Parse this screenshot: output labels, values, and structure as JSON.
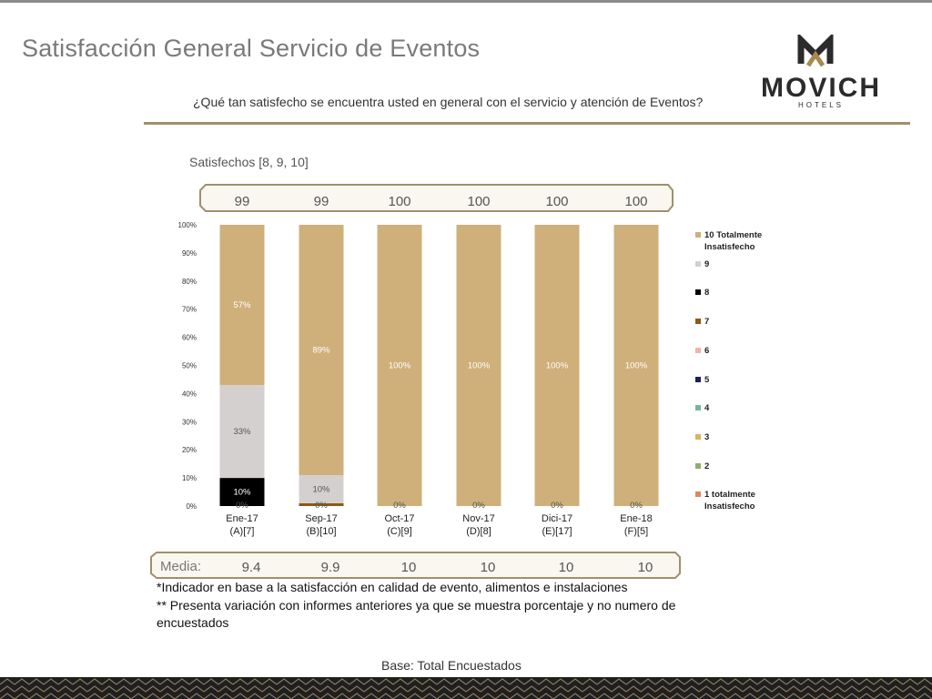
{
  "header": {
    "title": "Satisfacción General Servicio de Eventos",
    "question": "¿Qué tan satisfecho se encuentra usted en general con el servicio y atención de Eventos?",
    "logo_text": "MOVICH",
    "logo_subtext": "HOTELS"
  },
  "satisfied_label": "Satisfechos [8, 9, 10]",
  "footer": {
    "note1": "*Indicador en base a la satisfacción en calidad de evento, alimentos e instalaciones",
    "note2": "** Presenta variación con informes anteriores ya que se muestra porcentaje y no numero de encuestados",
    "base": "Base: Total Encuestados"
  },
  "colors": {
    "score10": "#cfb07a",
    "score9": "#d4d0cf",
    "score8": "#000000",
    "score7": "#8b5a14",
    "score6": "#f2b3a7",
    "score5": "#1a1f5c",
    "score4": "#7ab3a6",
    "score3": "#e0b060",
    "score2": "#8fae6e",
    "score1": "#e0875a",
    "band_border": "#a08f6a",
    "band_fill": "#faf7f1"
  },
  "chart_data": {
    "type": "bar",
    "stacked": true,
    "categories": [
      "Ene-17",
      "Sep-17",
      "Oct-17",
      "Nov-17",
      "Dici-17",
      "Ene-18"
    ],
    "category_sublabels": [
      "(A)[7]",
      "(B)[10]",
      "(C)[9]",
      "(D)[8]",
      "(E)[17]",
      "(F)[5]"
    ],
    "ylim": [
      0,
      100
    ],
    "yticks": [
      "0%",
      "10%",
      "20%",
      "30%",
      "40%",
      "50%",
      "60%",
      "70%",
      "80%",
      "90%",
      "100%"
    ],
    "legend_position": "right",
    "series": [
      {
        "name": "1 totalmente Insatisfecho",
        "values": [
          0,
          0,
          0,
          0,
          0,
          0
        ]
      },
      {
        "name": "2",
        "values": [
          0,
          0,
          0,
          0,
          0,
          0
        ]
      },
      {
        "name": "3",
        "values": [
          0,
          0,
          0,
          0,
          0,
          0
        ]
      },
      {
        "name": "4",
        "values": [
          0,
          0,
          0,
          0,
          0,
          0
        ]
      },
      {
        "name": "5",
        "values": [
          0,
          0,
          0,
          0,
          0,
          0
        ]
      },
      {
        "name": "6",
        "values": [
          0,
          0,
          0,
          0,
          0,
          0
        ]
      },
      {
        "name": "7",
        "values": [
          0,
          1,
          0,
          0,
          0,
          0
        ]
      },
      {
        "name": "8",
        "values": [
          10,
          0,
          0,
          0,
          0,
          0
        ]
      },
      {
        "name": "9",
        "values": [
          33,
          10,
          0,
          0,
          0,
          0
        ]
      },
      {
        "name": "10 Totalmente Insatisfecho",
        "values": [
          57,
          89,
          100,
          100,
          100,
          100
        ]
      }
    ],
    "bar_labels": [
      {
        "category": 0,
        "series": "10 Totalmente Insatisfecho",
        "text": "57%"
      },
      {
        "category": 0,
        "series": "9",
        "text": "33%"
      },
      {
        "category": 0,
        "series": "8",
        "text": "10%"
      },
      {
        "category": 0,
        "series": "1 totalmente Insatisfecho",
        "text": "0%"
      },
      {
        "category": 1,
        "series": "10 Totalmente Insatisfecho",
        "text": "89%"
      },
      {
        "category": 1,
        "series": "9",
        "text": "10%"
      },
      {
        "category": 1,
        "series": "1 totalmente Insatisfecho",
        "text": "0%"
      },
      {
        "category": 2,
        "series": "10 Totalmente Insatisfecho",
        "text": "100%"
      },
      {
        "category": 2,
        "series": "1 totalmente Insatisfecho",
        "text": "0%"
      },
      {
        "category": 3,
        "series": "10 Totalmente Insatisfecho",
        "text": "100%"
      },
      {
        "category": 3,
        "series": "1 totalmente Insatisfecho",
        "text": "0%"
      },
      {
        "category": 4,
        "series": "10 Totalmente Insatisfecho",
        "text": "100%"
      },
      {
        "category": 4,
        "series": "1 totalmente Insatisfecho",
        "text": "0%"
      },
      {
        "category": 5,
        "series": "10 Totalmente Insatisfecho",
        "text": "100%"
      },
      {
        "category": 5,
        "series": "1 totalmente Insatisfecho",
        "text": "0%"
      }
    ],
    "satisfied_values": [
      "99",
      "99",
      "100",
      "100",
      "100",
      "100"
    ],
    "media_label": "Media:",
    "media_values": [
      "9.4",
      "9.9",
      "10",
      "10",
      "10",
      "10"
    ]
  }
}
